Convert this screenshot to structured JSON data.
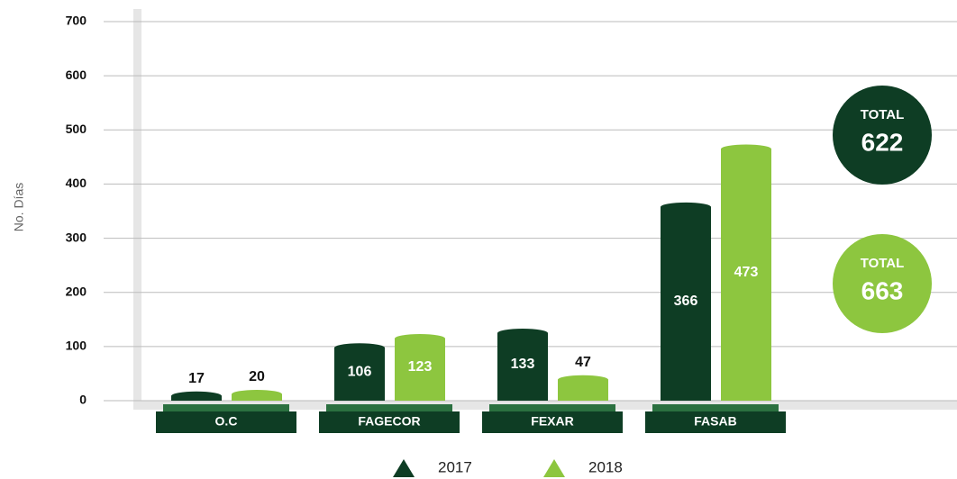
{
  "chart_data": {
    "type": "bar",
    "y_label": "No. Días",
    "categories": [
      "O.C",
      "FAGECOR",
      "FEXAR",
      "FASAB"
    ],
    "series": [
      {
        "name": "2017",
        "color": "#0e3d24",
        "values": [
          17,
          106,
          133,
          366
        ],
        "total_label": "TOTAL",
        "total": 622
      },
      {
        "name": "2018",
        "color": "#8dc63f",
        "values": [
          20,
          123,
          47,
          473
        ],
        "total_label": "TOTAL",
        "total": 663
      }
    ],
    "ylim": [
      0,
      700
    ],
    "yticks": [
      0,
      100,
      200,
      300,
      400,
      500,
      600,
      700
    ],
    "grid": true,
    "legend": "bottom"
  }
}
